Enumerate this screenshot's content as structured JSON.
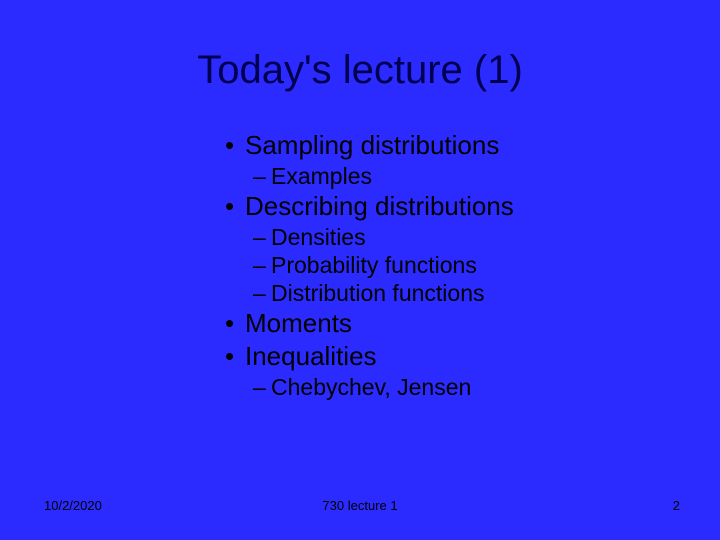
{
  "type": "infographic",
  "background_color": "#2b2bff",
  "title": {
    "text": "Today's lecture (1)",
    "color": "#000050",
    "fontsize": 40
  },
  "body": {
    "color": "#000000",
    "l1_fontsize": 26,
    "l2_fontsize": 23,
    "l1_marker": "•",
    "l2_marker": "–"
  },
  "items": [
    {
      "level": 1,
      "text": "Sampling distributions"
    },
    {
      "level": 2,
      "text": "Examples"
    },
    {
      "level": 1,
      "text": "Describing distributions"
    },
    {
      "level": 2,
      "text": "Densities"
    },
    {
      "level": 2,
      "text": "Probability functions"
    },
    {
      "level": 2,
      "text": "Distribution functions"
    },
    {
      "level": 1,
      "text": "Moments"
    },
    {
      "level": 1,
      "text": "Inequalities"
    },
    {
      "level": 2,
      "text": "Chebychev, Jensen"
    }
  ],
  "footer": {
    "date": "10/2/2020",
    "center": "730 lecture 1",
    "page": "2",
    "color": "#000000",
    "fontsize": 13
  }
}
